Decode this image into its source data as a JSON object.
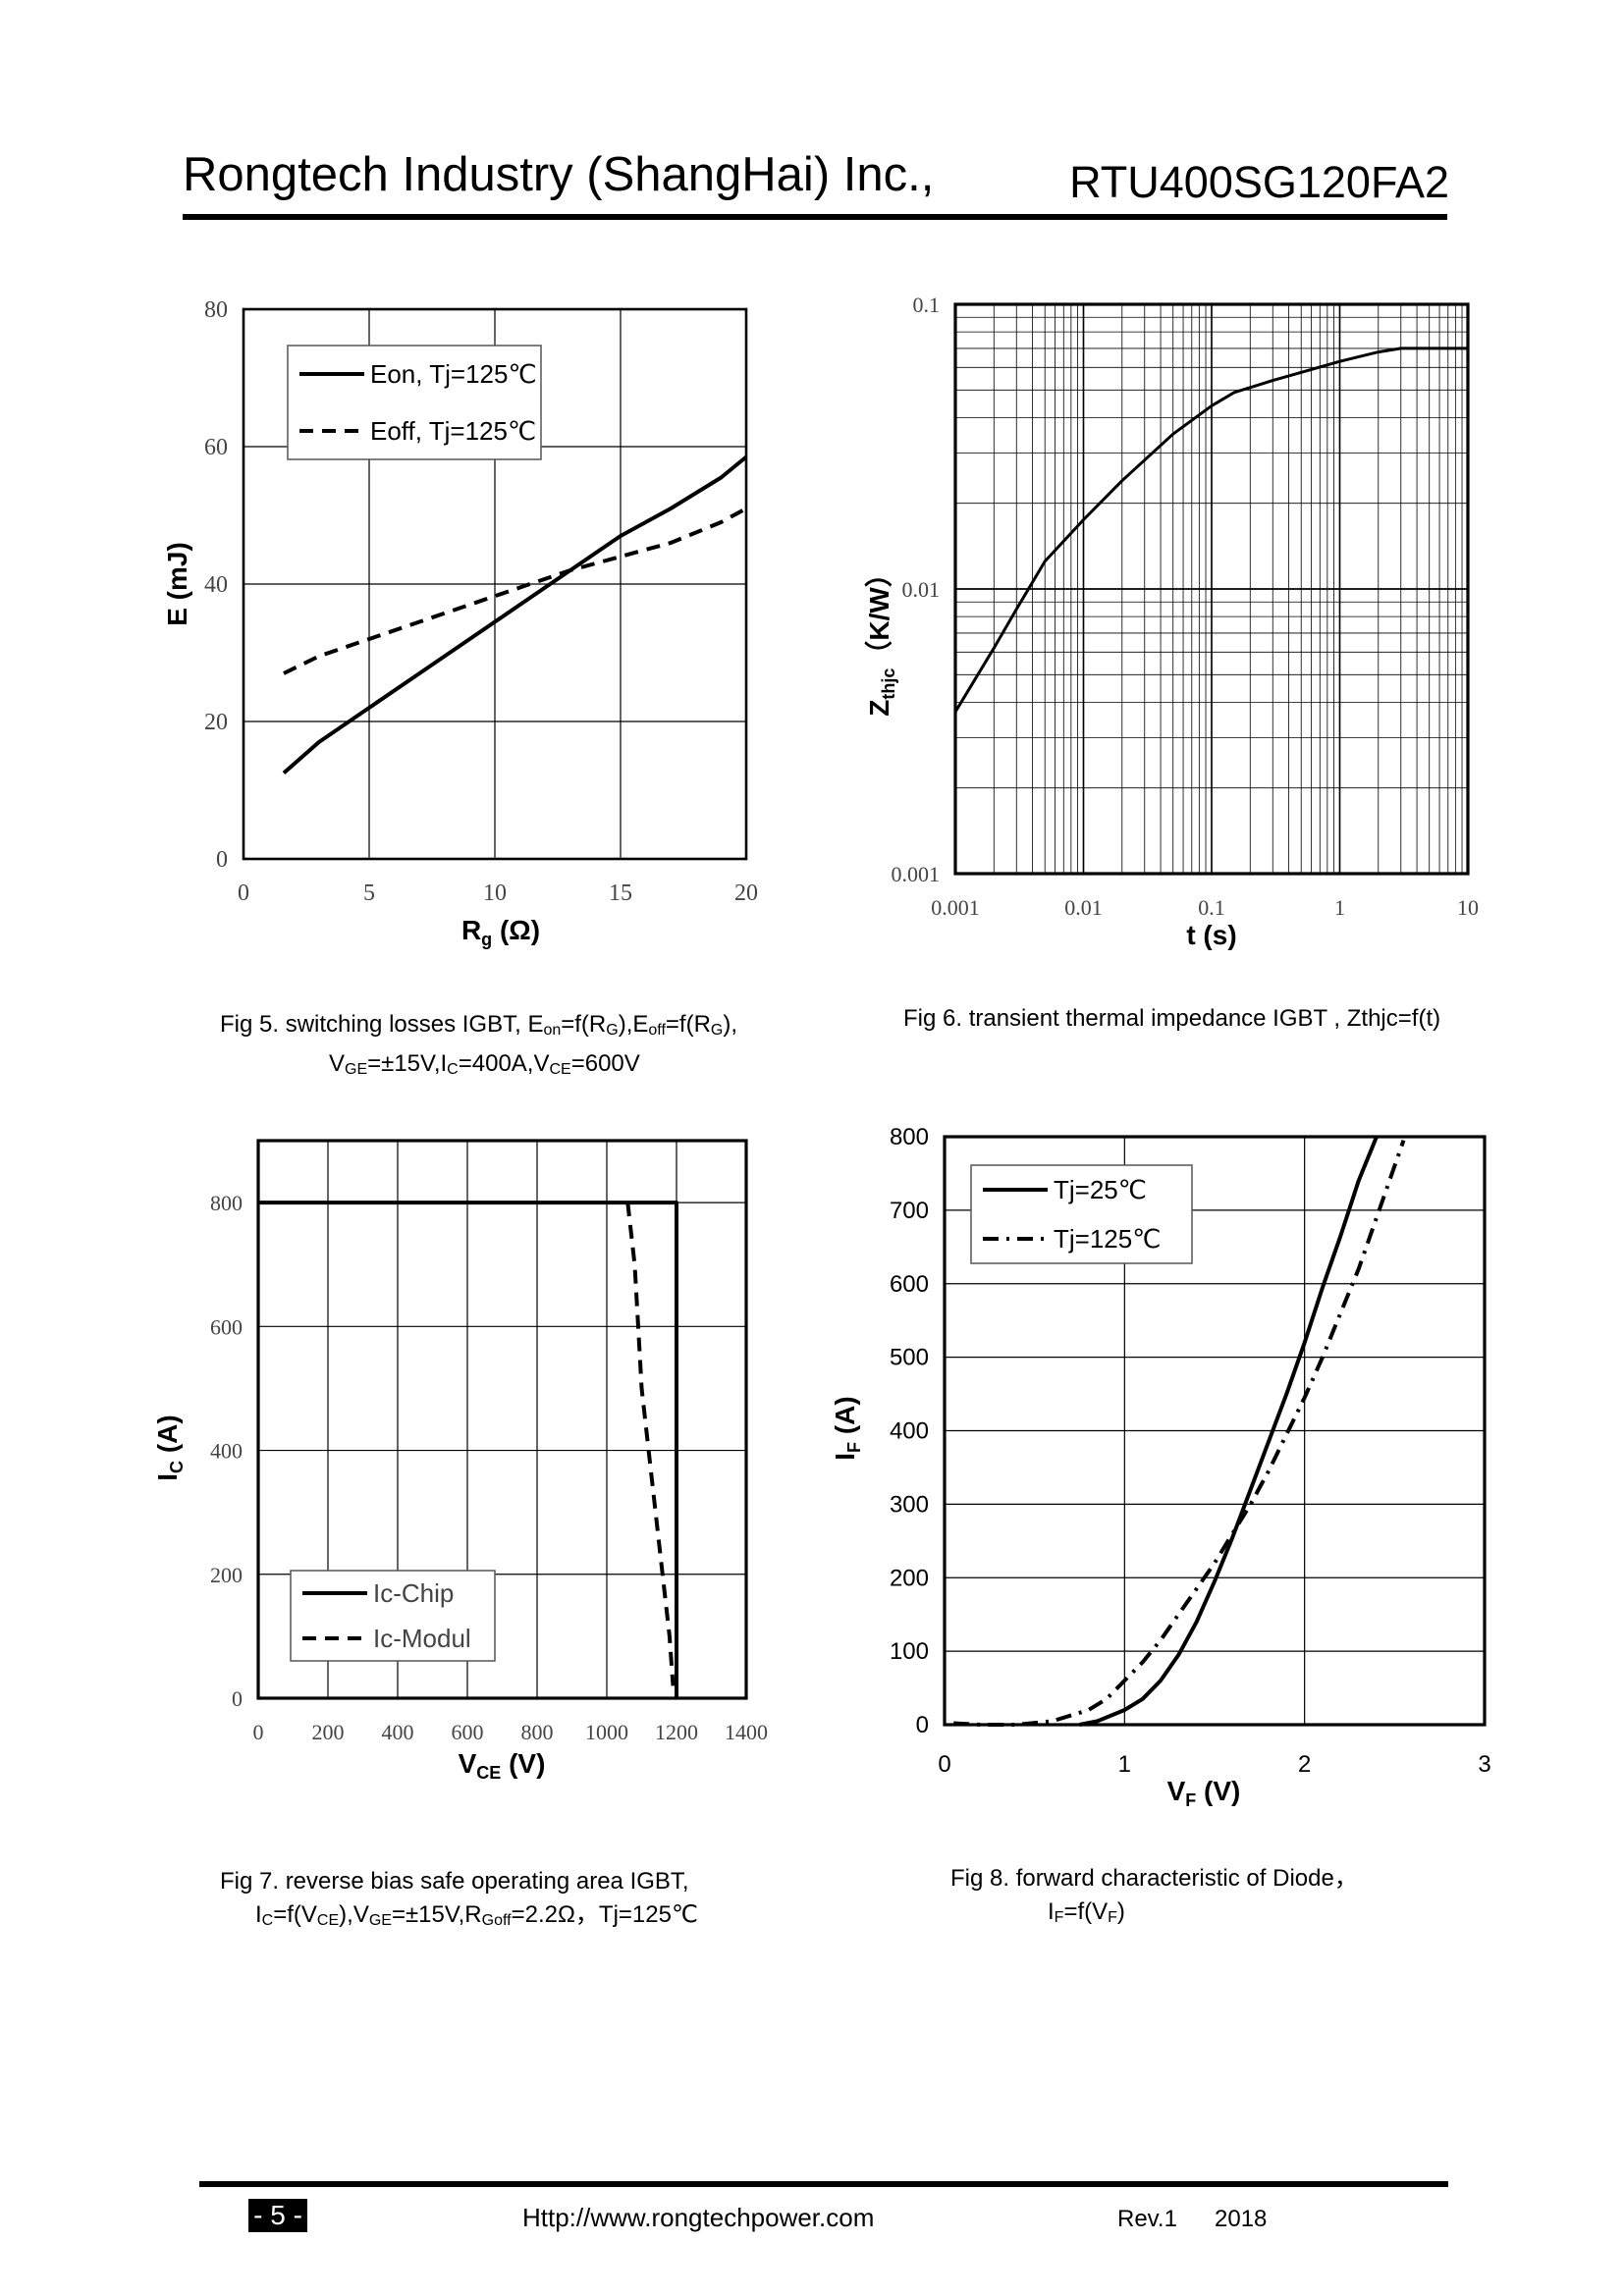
{
  "header": {
    "company": "Rongtech Industry (ShangHai) Inc.,",
    "part_number": "RTU400SG120FA2"
  },
  "captions": {
    "fig5": {
      "prefix": "Fig 5. switching losses IGBT, E",
      "on_sub": "on",
      "mid1": "=f(R",
      "g_sub1": "G",
      "mid2": "),E",
      "off_sub": "off",
      "mid3": "=f(R",
      "g_sub2": "G",
      "end": "),",
      "l2_v": "V",
      "ge_sub": "GE",
      "l2_a": "=±15V,I",
      "c_sub": "C",
      "l2_b": "=400A,V",
      "ce_sub": "CE",
      "l2_c": "=600V"
    },
    "fig6": {
      "text": "Fig 6. transient thermal impedance IGBT , Zthjc=f(t)"
    },
    "fig7": {
      "line1": "Fig 7. reverse bias safe operating area IGBT,",
      "i": "I",
      "c_sub": "C",
      "a": "=f(V",
      "ce_sub": "CE",
      "b": "),V",
      "ge_sub": "GE",
      "c": "=±15V,R",
      "goff_sub": "Goff",
      "d": "=2.2Ω，Tj=125℃"
    },
    "fig8": {
      "line1": "Fig 8. forward characteristic of  Diode，",
      "i": "I",
      "f_sub": "F",
      "a": "=f(V",
      "f_sub2": "F",
      "b": ")"
    }
  },
  "footer": {
    "page": "- 5 -",
    "url": "Http://www.rongtechpower.com",
    "rev": "Rev.1",
    "year": "2018"
  },
  "chart_data": [
    {
      "id": "fig5",
      "type": "line",
      "xlabel": "R",
      "xlabel_sub": "g",
      "xlabel_unit": " (Ω)",
      "ylabel": "E (mJ)",
      "xlim": [
        0,
        20
      ],
      "ylim": [
        0,
        80
      ],
      "xticks": [
        0,
        5,
        10,
        15,
        20
      ],
      "yticks": [
        0,
        20,
        40,
        60,
        80
      ],
      "legend": {
        "position": "top-left",
        "entries": [
          "Eon, Tj=125℃",
          "Eoff, Tj=125℃"
        ]
      },
      "series": [
        {
          "name": "Eon, Tj=125℃",
          "style": "solid",
          "x": [
            1.6,
            3,
            5,
            7,
            9,
            11,
            13,
            15,
            17,
            19,
            20
          ],
          "y": [
            12.5,
            17,
            22,
            27,
            32,
            37,
            42,
            47,
            51,
            55.5,
            58.5
          ]
        },
        {
          "name": "Eoff, Tj=125℃",
          "style": "dashed",
          "x": [
            1.6,
            3,
            5,
            7,
            9,
            11,
            13,
            15,
            17,
            19,
            20
          ],
          "y": [
            27,
            29.5,
            32,
            34.5,
            37,
            39.5,
            42,
            44,
            46,
            49,
            51
          ]
        }
      ]
    },
    {
      "id": "fig6",
      "type": "line",
      "scale": "loglog",
      "xlabel": "t (s)",
      "ylabel": "Z",
      "ylabel_sub": "thjc",
      "ylabel_unit": "（K/W）",
      "xlim": [
        0.001,
        10
      ],
      "ylim": [
        0.001,
        0.1
      ],
      "xticks": [
        "0.001",
        "0.01",
        "0.1",
        "1",
        "10"
      ],
      "yticks": [
        "0.001",
        "0.01",
        "0.1"
      ],
      "series": [
        {
          "name": "Zthjc",
          "style": "solid",
          "x": [
            0.001,
            0.002,
            0.003,
            0.005,
            0.01,
            0.02,
            0.05,
            0.1,
            0.15,
            0.3,
            1,
            2,
            3,
            5,
            10
          ],
          "y": [
            0.0037,
            0.0062,
            0.0085,
            0.0125,
            0.0175,
            0.024,
            0.035,
            0.044,
            0.049,
            0.054,
            0.063,
            0.068,
            0.07,
            0.07,
            0.07
          ]
        }
      ]
    },
    {
      "id": "fig7",
      "type": "line",
      "xlabel": "V",
      "xlabel_sub": "CE",
      "xlabel_unit": " (V)",
      "ylabel": "I",
      "ylabel_sub": "C",
      "ylabel_unit": " (A)",
      "xlim": [
        0,
        1400
      ],
      "ylim": [
        0,
        900
      ],
      "xticks": [
        0,
        200,
        400,
        600,
        800,
        1000,
        1200,
        1400
      ],
      "yticks": [
        0,
        200,
        400,
        600,
        800
      ],
      "legend": {
        "position": "bottom-left",
        "entries": [
          "Ic-Chip",
          "Ic-Modul"
        ]
      },
      "series": [
        {
          "name": "Ic-Chip",
          "style": "solid",
          "x": [
            0,
            1200,
            1200
          ],
          "y": [
            800,
            800,
            0
          ]
        },
        {
          "name": "Ic-Modul",
          "style": "dashed",
          "x": [
            1060,
            1080,
            1090,
            1100,
            1120,
            1140,
            1160,
            1180,
            1190
          ],
          "y": [
            800,
            700,
            600,
            500,
            400,
            300,
            200,
            100,
            20
          ]
        }
      ]
    },
    {
      "id": "fig8",
      "type": "line",
      "xlabel": "V",
      "xlabel_sub": "F",
      "xlabel_unit": " (V)",
      "ylabel": "I",
      "ylabel_sub": "F",
      "ylabel_unit": " (A)",
      "xlim": [
        0,
        3
      ],
      "ylim": [
        0,
        800
      ],
      "xticks": [
        0,
        1,
        2,
        3
      ],
      "yticks": [
        0,
        100,
        200,
        300,
        400,
        500,
        600,
        700,
        800
      ],
      "legend": {
        "position": "top-left",
        "entries": [
          "Tj=25℃",
          "Tj=125℃"
        ]
      },
      "series": [
        {
          "name": "Tj=25℃",
          "style": "solid",
          "x": [
            0.75,
            0.85,
            1.0,
            1.1,
            1.2,
            1.3,
            1.4,
            1.5,
            1.6,
            1.7,
            1.8,
            1.9,
            2.0,
            2.1,
            2.2,
            2.3,
            2.4
          ],
          "y": [
            0,
            5,
            20,
            35,
            60,
            95,
            140,
            195,
            255,
            320,
            385,
            450,
            520,
            595,
            665,
            740,
            800
          ]
        },
        {
          "name": "Tj=125℃",
          "style": "dashdot",
          "x": [
            0.05,
            0.2,
            0.4,
            0.6,
            0.8,
            0.9,
            1.0,
            1.1,
            1.2,
            1.3,
            1.4,
            1.5,
            1.6,
            1.7,
            1.8,
            1.9,
            2.0,
            2.1,
            2.2,
            2.3,
            2.4,
            2.5,
            2.55
          ],
          "y": [
            2,
            0,
            0,
            5,
            20,
            35,
            60,
            85,
            115,
            150,
            185,
            220,
            260,
            300,
            345,
            395,
            445,
            500,
            560,
            620,
            690,
            760,
            795
          ]
        }
      ]
    }
  ]
}
